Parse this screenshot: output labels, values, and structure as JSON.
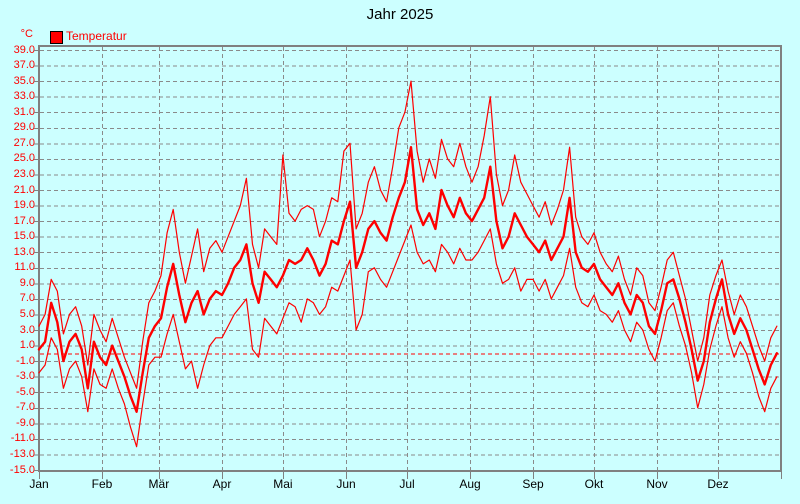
{
  "title": "Jahr 2025",
  "unit_label": "°C",
  "legend": {
    "label": "Temperatur",
    "swatch_color": "#ff0000"
  },
  "colors": {
    "background": "#ccffff",
    "frame": "#808080",
    "grid": "#8a8a8a",
    "series": "#ff0000",
    "zero_line": "#ff0000",
    "y_axis_text": "#ff0000",
    "x_axis_text": "#000000",
    "title_text": "#000000"
  },
  "chart_data": {
    "type": "line",
    "title": "Jahr 2025",
    "xlabel": "",
    "ylabel": "°C",
    "ylim": [
      -15,
      39
    ],
    "ytick_step": 2,
    "grid": true,
    "legend_position": "top-left",
    "zero_reference_line": 0,
    "categories": [
      "Jan",
      "Feb",
      "Mär",
      "Apr",
      "Mai",
      "Jun",
      "Jul",
      "Aug",
      "Sep",
      "Okt",
      "Nov",
      "Dez"
    ],
    "month_start_days": [
      1,
      32,
      60,
      91,
      121,
      152,
      182,
      213,
      244,
      274,
      305,
      335
    ],
    "days_in_year": 365,
    "days": [
      1,
      4,
      7,
      10,
      13,
      16,
      19,
      22,
      25,
      28,
      31,
      34,
      37,
      40,
      43,
      46,
      49,
      52,
      55,
      58,
      61,
      64,
      67,
      70,
      73,
      76,
      79,
      82,
      85,
      88,
      91,
      94,
      97,
      100,
      103,
      106,
      109,
      112,
      115,
      118,
      121,
      124,
      127,
      130,
      133,
      136,
      139,
      142,
      145,
      148,
      151,
      154,
      157,
      160,
      163,
      166,
      169,
      172,
      175,
      178,
      181,
      184,
      187,
      190,
      193,
      196,
      199,
      202,
      205,
      208,
      211,
      214,
      217,
      220,
      223,
      226,
      229,
      232,
      235,
      238,
      241,
      244,
      247,
      250,
      253,
      256,
      259,
      262,
      265,
      268,
      271,
      274,
      277,
      280,
      283,
      286,
      289,
      292,
      295,
      298,
      301,
      304,
      307,
      310,
      313,
      316,
      319,
      322,
      325,
      328,
      331,
      334,
      337,
      340,
      343,
      346,
      349,
      352,
      355,
      358,
      361,
      364
    ],
    "series": [
      {
        "role": "max",
        "values": [
          3.5,
          5,
          9.5,
          8,
          2.5,
          5,
          6,
          3.5,
          -1.5,
          5,
          3,
          1.5,
          4.5,
          2,
          -0.5,
          -2.5,
          -4.5,
          1.5,
          6.5,
          8,
          10,
          15.5,
          18.5,
          13,
          9,
          12.5,
          16,
          10.5,
          13.5,
          14.5,
          13,
          15,
          17,
          19,
          22.5,
          14,
          11,
          16,
          15,
          14,
          25.5,
          18,
          17,
          18.5,
          19,
          18.5,
          15,
          17,
          20,
          19.5,
          26,
          27,
          16,
          18,
          22,
          24,
          21,
          19.5,
          24,
          29,
          31,
          35,
          26,
          22,
          25,
          22.5,
          27.5,
          25,
          24,
          27,
          24,
          22,
          24,
          28,
          33,
          23,
          19,
          21,
          25.5,
          22,
          20.5,
          19,
          17.5,
          19.5,
          16.5,
          18.5,
          21,
          26.5,
          17.5,
          15,
          14,
          15.5,
          13,
          11.5,
          10.5,
          12.5,
          9.5,
          7.5,
          11,
          10,
          6.5,
          5.5,
          8.5,
          12,
          13,
          10,
          7,
          3,
          -1,
          2,
          7.5,
          10,
          12,
          8,
          5,
          7.5,
          6,
          3.5,
          1,
          -1,
          2,
          3.5
        ]
      },
      {
        "role": "mean",
        "values": [
          0.5,
          1.5,
          6.5,
          4,
          -1,
          1.5,
          2.5,
          0.5,
          -4.5,
          1.5,
          -0.5,
          -1.5,
          1,
          -1,
          -3,
          -5.5,
          -7.5,
          -2.5,
          2,
          3.5,
          4.5,
          8.5,
          11.5,
          7.5,
          4,
          6.5,
          8,
          5,
          7,
          8,
          7.5,
          9,
          11,
          12,
          14,
          9,
          6.5,
          10.5,
          9.5,
          8.5,
          10,
          12,
          11.5,
          12,
          13.5,
          12,
          10,
          11.5,
          14.5,
          14,
          17,
          19.5,
          11,
          13,
          16,
          17,
          15.5,
          14.5,
          17.5,
          20,
          22,
          26.5,
          18.5,
          16.5,
          18,
          16,
          21,
          19,
          17.5,
          20,
          18,
          17,
          18.5,
          20,
          24,
          17,
          13.5,
          15,
          18,
          16.5,
          15,
          14,
          13,
          14.5,
          12,
          13.5,
          15,
          20,
          13,
          11,
          10.5,
          11.5,
          9.5,
          8.5,
          7.5,
          9,
          6.5,
          5,
          7.5,
          6.5,
          3.5,
          2.5,
          5.5,
          9,
          9.5,
          7,
          4,
          0.5,
          -3.5,
          -1,
          4,
          7,
          9.5,
          5,
          2.5,
          4.5,
          3,
          0.5,
          -2,
          -4,
          -1.5,
          0
        ]
      },
      {
        "role": "min",
        "values": [
          -2.5,
          -1.5,
          2,
          0.5,
          -4.5,
          -2,
          -1,
          -3,
          -7.5,
          -2,
          -4,
          -4.5,
          -2,
          -4.5,
          -6.5,
          -9.5,
          -12,
          -6.5,
          -1.5,
          -0.5,
          -0.5,
          2.5,
          5,
          1.5,
          -2,
          -1,
          -4.5,
          -1.5,
          1,
          2,
          2,
          3.5,
          5,
          6,
          7,
          0.5,
          -0.5,
          4.5,
          3.5,
          2.5,
          4.5,
          6.5,
          6,
          4,
          7,
          6.5,
          5,
          6,
          8.5,
          8,
          10,
          12,
          3,
          5,
          10.5,
          11,
          9.5,
          8.5,
          10.5,
          12.5,
          14.5,
          16.5,
          13,
          11.5,
          12,
          10.5,
          14,
          13,
          11.5,
          13.5,
          12,
          12,
          13,
          14.5,
          16,
          11.5,
          9,
          9.5,
          11,
          8,
          9.5,
          9.5,
          8,
          9.5,
          7,
          8.5,
          10,
          13.5,
          8.5,
          6.5,
          6,
          7.5,
          5.5,
          5,
          4,
          5.5,
          3,
          1.5,
          4,
          3,
          0.5,
          -1,
          2,
          5.5,
          6.5,
          3.5,
          1,
          -2.5,
          -7,
          -4,
          0.5,
          3.5,
          6,
          2,
          -0.5,
          1.5,
          0,
          -2.5,
          -5.5,
          -7.5,
          -4.5,
          -3
        ]
      }
    ]
  }
}
